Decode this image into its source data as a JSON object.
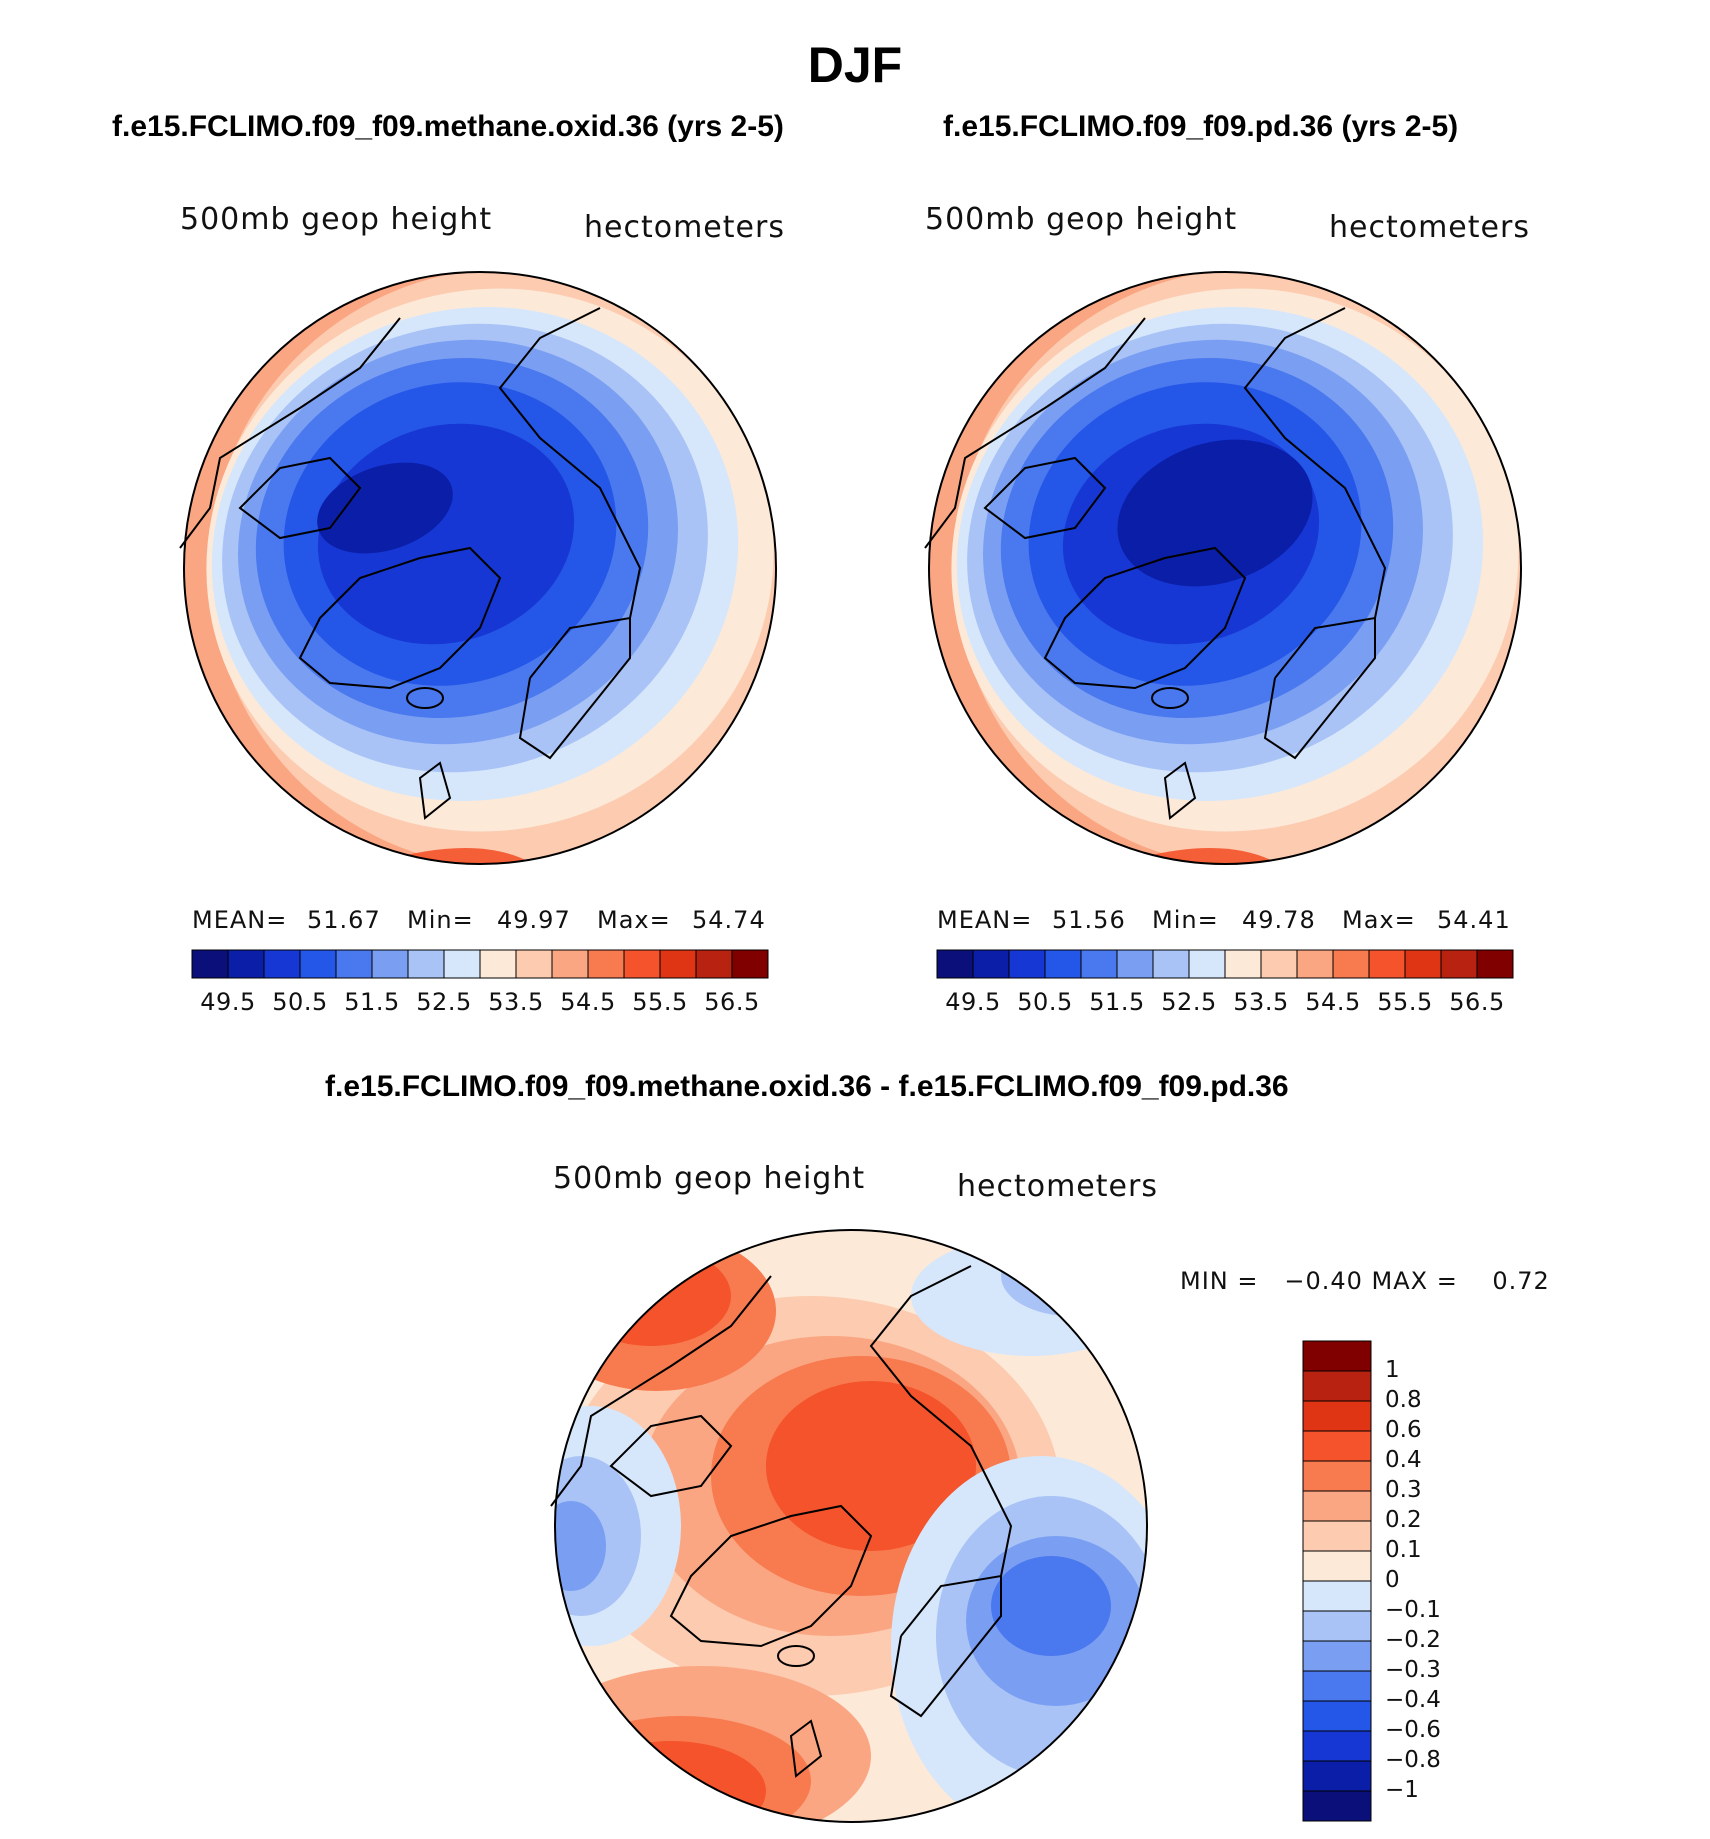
{
  "figure": {
    "title": "DJF"
  },
  "panels": [
    {
      "title": "f.e15.FCLIMO.f09_f09.methane.oxid.36 (yrs 2-5)",
      "variable": "500mb geop height",
      "units": "hectometers",
      "mean_label": "MEAN=",
      "mean": "51.67",
      "min_label": "Min=",
      "min": "49.97",
      "max_label": "Max=",
      "max": "54.74"
    },
    {
      "title": "f.e15.FCLIMO.f09_f09.pd.36 (yrs 2-5)",
      "variable": "500mb geop height",
      "units": "hectometers",
      "mean_label": "MEAN=",
      "mean": "51.56",
      "min_label": "Min=",
      "min": "49.78",
      "max_label": "Max=",
      "max": "54.41"
    },
    {
      "title": "f.e15.FCLIMO.f09_f09.methane.oxid.36 - f.e15.FCLIMO.f09_f09.pd.36",
      "variable": "500mb geop height",
      "units": "hectometers",
      "minmax_text": "MIN =   −0.40 MAX =    0.72"
    }
  ],
  "colors": {
    "mean_palette": [
      "#0a0f7a",
      "#0b1ea8",
      "#1637d4",
      "#2456e8",
      "#4a78ee",
      "#7a9ff2",
      "#a9c3f6",
      "#d6e7fb",
      "#fde9d8",
      "#fccbb0",
      "#fba682",
      "#f87a4f",
      "#f4532b",
      "#e03515",
      "#b82210",
      "#800000"
    ],
    "diff_palette": [
      "#0a0f7a",
      "#0b1ea8",
      "#1637d4",
      "#2456e8",
      "#4a78ee",
      "#7a9ff2",
      "#a9c3f6",
      "#d6e7fb",
      "#fde9d8",
      "#fccbb0",
      "#fba682",
      "#f87a4f",
      "#f4532b",
      "#e03515",
      "#b82210",
      "#800000"
    ],
    "coastline": "#000000"
  },
  "chart_data": [
    {
      "type": "heatmap",
      "title": "f.e15.FCLIMO.f09_f09.methane.oxid.36 (yrs 2-5)",
      "projection": "north polar stereographic",
      "variable": "500mb geop height",
      "units": "hectometers",
      "mean": 51.67,
      "min": 49.97,
      "max": 54.74,
      "contour_levels": [
        49.5,
        50,
        50.5,
        51,
        51.5,
        52,
        52.5,
        53,
        53.5,
        54,
        54.5,
        55,
        55.5,
        56,
        56.5
      ],
      "colorbar_ticks": [
        "49.5",
        "50.5",
        "51.5",
        "52.5",
        "53.5",
        "54.5",
        "55.5",
        "56.5"
      ]
    },
    {
      "type": "heatmap",
      "title": "f.e15.FCLIMO.f09_f09.pd.36 (yrs 2-5)",
      "projection": "north polar stereographic",
      "variable": "500mb geop height",
      "units": "hectometers",
      "mean": 51.56,
      "min": 49.78,
      "max": 54.41,
      "contour_levels": [
        49.5,
        50,
        50.5,
        51,
        51.5,
        52,
        52.5,
        53,
        53.5,
        54,
        54.5,
        55,
        55.5,
        56,
        56.5
      ],
      "colorbar_ticks": [
        "49.5",
        "50.5",
        "51.5",
        "52.5",
        "53.5",
        "54.5",
        "55.5",
        "56.5"
      ]
    },
    {
      "type": "heatmap",
      "title": "f.e15.FCLIMO.f09_f09.methane.oxid.36 - f.e15.FCLIMO.f09_f09.pd.36",
      "projection": "north polar stereographic",
      "variable": "500mb geop height",
      "units": "hectometers",
      "min": -0.4,
      "max": 0.72,
      "contour_levels": [
        -1,
        -0.8,
        -0.6,
        -0.4,
        -0.3,
        -0.2,
        -0.1,
        0,
        0.1,
        0.2,
        0.3,
        0.4,
        0.6,
        0.8,
        1
      ],
      "colorbar_ticks": [
        "1",
        "0.8",
        "0.6",
        "0.4",
        "0.3",
        "0.2",
        "0.1",
        "0",
        "−0.1",
        "−0.2",
        "−0.3",
        "−0.4",
        "−0.6",
        "−0.8",
        "−1"
      ]
    }
  ]
}
